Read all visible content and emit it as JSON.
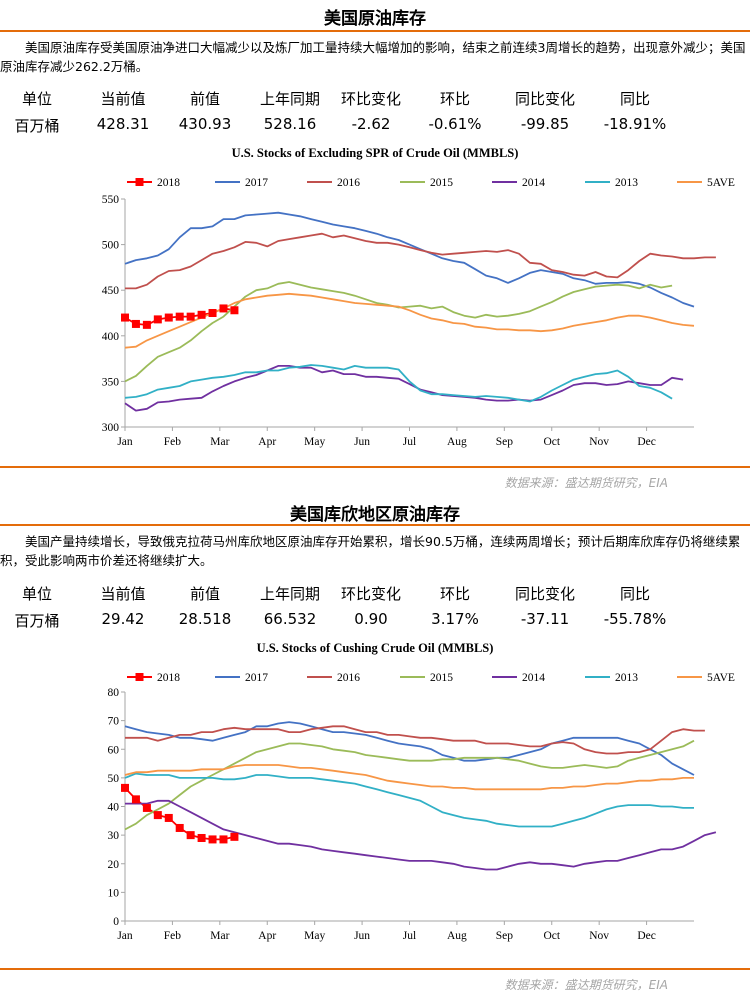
{
  "section1": {
    "title": "美国原油库存",
    "description": "美国原油库存受美国原油净进口大幅减少以及炼厂加工量持续大幅增加的影响，结束之前连续3周增长的趋势，出现意外减少；美国原油库存减少262.2万桶。",
    "stats": {
      "headers": [
        "单位",
        "当前值",
        "前值",
        "上年同期",
        "环比变化",
        "环比",
        "同比变化",
        "同比"
      ],
      "values": [
        "百万桶",
        "428.31",
        "430.93",
        "528.16",
        "-2.62",
        "-0.61%",
        "-99.85",
        "-18.91%"
      ]
    },
    "source": "数据来源：盛达期货研究，EIA"
  },
  "section2": {
    "title": "美国库欣地区原油库存",
    "description": "美国产量持续增长，导致俄克拉荷马州库欣地区原油库存开始累积，增长90.5万桶，连续两周增长；预计后期库欣库存仍将继续累积，受此影响两市价差还将继续扩大。",
    "stats": {
      "headers": [
        "单位",
        "当前值",
        "前值",
        "上年同期",
        "环比变化",
        "环比",
        "同比变化",
        "同比"
      ],
      "values": [
        "百万桶",
        "29.42",
        "28.518",
        "66.532",
        "0.90",
        "3.17%",
        "-37.11",
        "-55.78%"
      ]
    },
    "source": "数据来源：盛达期货研究，EIA"
  },
  "chart_data": [
    {
      "type": "line",
      "title": "U.S.  Stocks of Excluding SPR of Crude Oil (MMBLS)",
      "xlabel": "",
      "ylabel": "",
      "x_unit": "week",
      "x_ticks": [
        "Jan",
        "Feb",
        "Mar",
        "Apr",
        "May",
        "Jun",
        "Jul",
        "Aug",
        "Sep",
        "Oct",
        "Nov",
        "Dec"
      ],
      "ylim": [
        300,
        550
      ],
      "y_ticks": [
        "300",
        "350",
        "400",
        "450",
        "500",
        "550"
      ],
      "grid": false,
      "legend_position": "top",
      "series": [
        {
          "name": "2018",
          "color": "#ff0000",
          "marker": "square",
          "values": [
            420,
            413,
            412,
            418,
            420,
            421,
            421,
            423,
            425,
            430,
            428
          ]
        },
        {
          "name": "2017",
          "color": "#4472c4",
          "values": [
            479,
            483,
            485,
            488,
            495,
            508,
            518,
            518,
            520,
            528,
            528,
            532,
            533,
            534,
            535,
            533,
            531,
            528,
            525,
            522,
            520,
            518,
            515,
            512,
            508,
            505,
            500,
            495,
            490,
            485,
            482,
            480,
            473,
            466,
            463,
            458,
            463,
            469,
            472,
            470,
            468,
            463,
            461,
            457,
            458,
            458,
            459,
            457,
            453,
            447,
            442,
            436,
            432
          ]
        },
        {
          "name": "2016",
          "color": "#c0504d",
          "values": [
            452,
            452,
            456,
            465,
            471,
            472,
            476,
            483,
            490,
            493,
            497,
            503,
            502,
            498,
            504,
            506,
            508,
            510,
            512,
            508,
            510,
            507,
            504,
            502,
            502,
            500,
            497,
            494,
            491,
            489,
            490,
            491,
            492,
            493,
            492,
            494,
            490,
            480,
            479,
            472,
            470,
            467,
            466,
            470,
            465,
            464,
            472,
            482,
            490,
            488,
            487,
            485,
            485,
            486,
            486
          ]
        },
        {
          "name": "2015",
          "color": "#9bbb59",
          "values": [
            350,
            356,
            367,
            377,
            382,
            387,
            395,
            405,
            414,
            421,
            432,
            443,
            450,
            452,
            457,
            459,
            456,
            453,
            451,
            449,
            447,
            444,
            440,
            436,
            434,
            431,
            432,
            433,
            430,
            432,
            426,
            422,
            420,
            423,
            421,
            422,
            424,
            427,
            432,
            437,
            443,
            448,
            451,
            454,
            455,
            456,
            455,
            452,
            456,
            453,
            455
          ]
        },
        {
          "name": "2014",
          "color": "#7030a0",
          "values": [
            326,
            318,
            320,
            327,
            328,
            330,
            331,
            332,
            339,
            345,
            350,
            354,
            357,
            362,
            367,
            367,
            365,
            365,
            360,
            362,
            358,
            358,
            355,
            355,
            354,
            353,
            347,
            341,
            338,
            335,
            334,
            333,
            332,
            330,
            329,
            329,
            330,
            329,
            330,
            335,
            340,
            346,
            348,
            348,
            346,
            347,
            350,
            348,
            346,
            346,
            354,
            352
          ]
        },
        {
          "name": "2013",
          "color": "#31b0c6",
          "values": [
            332,
            333,
            336,
            341,
            343,
            345,
            350,
            352,
            354,
            355,
            357,
            360,
            360,
            362,
            362,
            365,
            366,
            368,
            367,
            365,
            363,
            367,
            365,
            365,
            365,
            363,
            350,
            340,
            336,
            336,
            335,
            334,
            333,
            334,
            333,
            332,
            330,
            328,
            333,
            340,
            346,
            352,
            355,
            358,
            359,
            362,
            355,
            345,
            343,
            338,
            331
          ]
        },
        {
          "name": "5AVE",
          "color": "#f79646",
          "values": [
            387,
            388,
            395,
            400,
            405,
            410,
            415,
            420,
            425,
            430,
            436,
            440,
            442,
            444,
            445,
            446,
            445,
            444,
            442,
            440,
            438,
            436,
            435,
            434,
            433,
            432,
            428,
            423,
            419,
            417,
            414,
            413,
            410,
            409,
            407,
            407,
            406,
            406,
            405,
            406,
            408,
            411,
            413,
            415,
            417,
            420,
            422,
            422,
            420,
            417,
            414,
            412,
            411
          ]
        }
      ]
    },
    {
      "type": "line",
      "title": "U.S.  Stocks of Cushing  Crude Oil (MMBLS)",
      "xlabel": "",
      "ylabel": "",
      "x_unit": "week",
      "x_ticks": [
        "Jan",
        "Feb",
        "Mar",
        "Apr",
        "May",
        "Jun",
        "Jul",
        "Aug",
        "Sep",
        "Oct",
        "Nov",
        "Dec"
      ],
      "ylim": [
        0,
        80
      ],
      "y_ticks": [
        "0",
        "10",
        "20",
        "30",
        "40",
        "50",
        "60",
        "70",
        "80"
      ],
      "grid": false,
      "legend_position": "top",
      "series": [
        {
          "name": "2018",
          "color": "#ff0000",
          "marker": "square",
          "values": [
            46.5,
            42.5,
            39.5,
            37,
            36,
            32.5,
            30,
            29,
            28.5,
            28.5,
            29.4
          ]
        },
        {
          "name": "2017",
          "color": "#4472c4",
          "values": [
            68,
            67,
            66,
            65.5,
            65,
            64,
            64,
            63.5,
            63,
            64,
            65,
            66,
            68,
            68,
            69,
            69.5,
            69,
            68,
            67,
            66,
            66,
            65.5,
            65,
            64,
            63,
            62,
            61.5,
            61,
            60,
            58,
            57,
            56,
            56,
            56.5,
            57,
            57,
            58,
            59,
            60,
            62,
            63,
            64,
            64,
            64,
            64,
            64,
            63,
            62,
            60,
            58,
            55,
            53,
            51
          ]
        },
        {
          "name": "2016",
          "color": "#c0504d",
          "values": [
            64,
            64,
            64,
            63,
            64,
            65,
            65,
            66,
            66,
            67,
            67.5,
            67,
            67,
            67,
            67,
            66,
            66,
            67,
            67.5,
            68,
            68,
            67,
            66,
            66,
            65,
            65,
            64.5,
            64,
            64,
            63.5,
            63,
            63,
            63,
            62,
            62,
            62,
            61.5,
            61,
            61,
            62,
            62.5,
            62,
            60,
            59,
            58.5,
            58.5,
            59,
            59,
            60,
            63,
            66,
            67,
            66.5,
            66.5
          ]
        },
        {
          "name": "2015",
          "color": "#9bbb59",
          "values": [
            32,
            34,
            37,
            39,
            41,
            44,
            47,
            49,
            51,
            53,
            55,
            57,
            59,
            60,
            61,
            62,
            62,
            61.5,
            61,
            60,
            59.5,
            59,
            58,
            57.5,
            57,
            56.5,
            56,
            56,
            56,
            56.5,
            56.5,
            57,
            57,
            57,
            57,
            56.5,
            56,
            55,
            54,
            53.5,
            53.5,
            54,
            54.5,
            54,
            53.5,
            54,
            56,
            57,
            58,
            59,
            60,
            61,
            63
          ]
        },
        {
          "name": "2014",
          "color": "#7030a0",
          "values": [
            41,
            41,
            41,
            42,
            42,
            40,
            38,
            36,
            34,
            32,
            31,
            30,
            29,
            28,
            27,
            27,
            26.5,
            26,
            25,
            24.5,
            24,
            23.5,
            23,
            22.5,
            22,
            21.5,
            21,
            21,
            21,
            20.5,
            20,
            19,
            18.5,
            18,
            18,
            19,
            20,
            20.5,
            20,
            20,
            19.5,
            19,
            20,
            20.5,
            21,
            21,
            22,
            23,
            24,
            25,
            25,
            26,
            28,
            30,
            31
          ]
        },
        {
          "name": "2013",
          "color": "#31b0c6",
          "values": [
            50,
            51.5,
            51,
            51,
            51,
            50,
            50,
            50,
            50,
            49.5,
            49.5,
            50,
            51,
            51,
            50.5,
            50,
            50,
            50,
            49.5,
            49,
            48.5,
            48,
            47,
            46,
            45,
            44,
            43,
            42,
            40,
            38,
            37,
            36,
            35.5,
            35,
            34,
            33.5,
            33,
            33,
            33,
            33,
            34,
            35,
            36,
            37.5,
            39,
            40,
            40.5,
            40.5,
            40.5,
            40,
            40,
            39.5,
            39.5
          ]
        },
        {
          "name": "5AVE",
          "color": "#f79646",
          "values": [
            51,
            52,
            52,
            52.5,
            52.5,
            52.5,
            52.5,
            53,
            53,
            53,
            54,
            54.5,
            54.5,
            54.5,
            54.5,
            54,
            53.5,
            53.5,
            53,
            52.5,
            52,
            51.5,
            51,
            50,
            49,
            48.5,
            48,
            47.5,
            47,
            47,
            46.5,
            46.5,
            46,
            46,
            46,
            46,
            46,
            46,
            46,
            46.5,
            46.5,
            47,
            47,
            47.5,
            48,
            48,
            48.5,
            49,
            49,
            49.5,
            49.5,
            50,
            50
          ]
        }
      ]
    }
  ]
}
